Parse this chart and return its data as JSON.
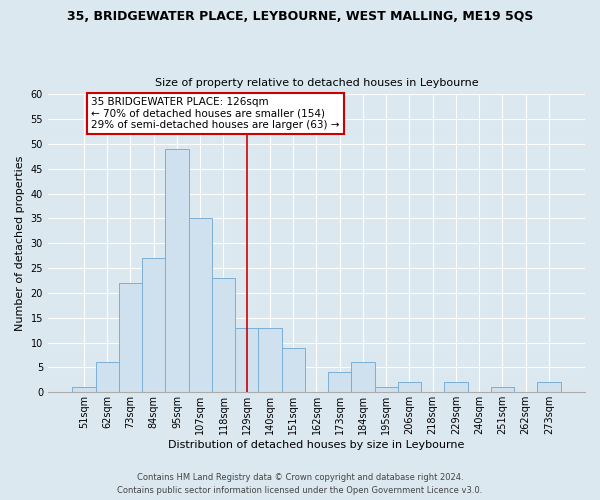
{
  "title": "35, BRIDGEWATER PLACE, LEYBOURNE, WEST MALLING, ME19 5QS",
  "subtitle": "Size of property relative to detached houses in Leybourne",
  "xlabel": "Distribution of detached houses by size in Leybourne",
  "ylabel": "Number of detached properties",
  "bar_labels": [
    "51sqm",
    "62sqm",
    "73sqm",
    "84sqm",
    "95sqm",
    "107sqm",
    "118sqm",
    "129sqm",
    "140sqm",
    "151sqm",
    "162sqm",
    "173sqm",
    "184sqm",
    "195sqm",
    "206sqm",
    "218sqm",
    "229sqm",
    "240sqm",
    "251sqm",
    "262sqm",
    "273sqm"
  ],
  "bar_heights": [
    1,
    6,
    22,
    27,
    49,
    35,
    23,
    13,
    13,
    9,
    0,
    4,
    6,
    1,
    2,
    0,
    2,
    0,
    1,
    0,
    2
  ],
  "bar_color": "#cfe0ef",
  "bar_edge_color": "#7bafd4",
  "vline_x_idx": 7,
  "vline_color": "#cc0000",
  "ylim": [
    0,
    60
  ],
  "yticks": [
    0,
    5,
    10,
    15,
    20,
    25,
    30,
    35,
    40,
    45,
    50,
    55,
    60
  ],
  "annotation_line1": "35 BRIDGEWATER PLACE: 126sqm",
  "annotation_line2": "← 70% of detached houses are smaller (154)",
  "annotation_line3": "29% of semi-detached houses are larger (63) →",
  "annotation_box_color": "#ffffff",
  "annotation_box_edge": "#cc0000",
  "footer_line1": "Contains HM Land Registry data © Crown copyright and database right 2024.",
  "footer_line2": "Contains public sector information licensed under the Open Government Licence v3.0.",
  "background_color": "#dce8f0",
  "grid_color": "#ffffff",
  "title_fontsize": 9,
  "subtitle_fontsize": 8,
  "ylabel_fontsize": 8,
  "xlabel_fontsize": 8,
  "tick_fontsize": 7,
  "footer_fontsize": 6
}
